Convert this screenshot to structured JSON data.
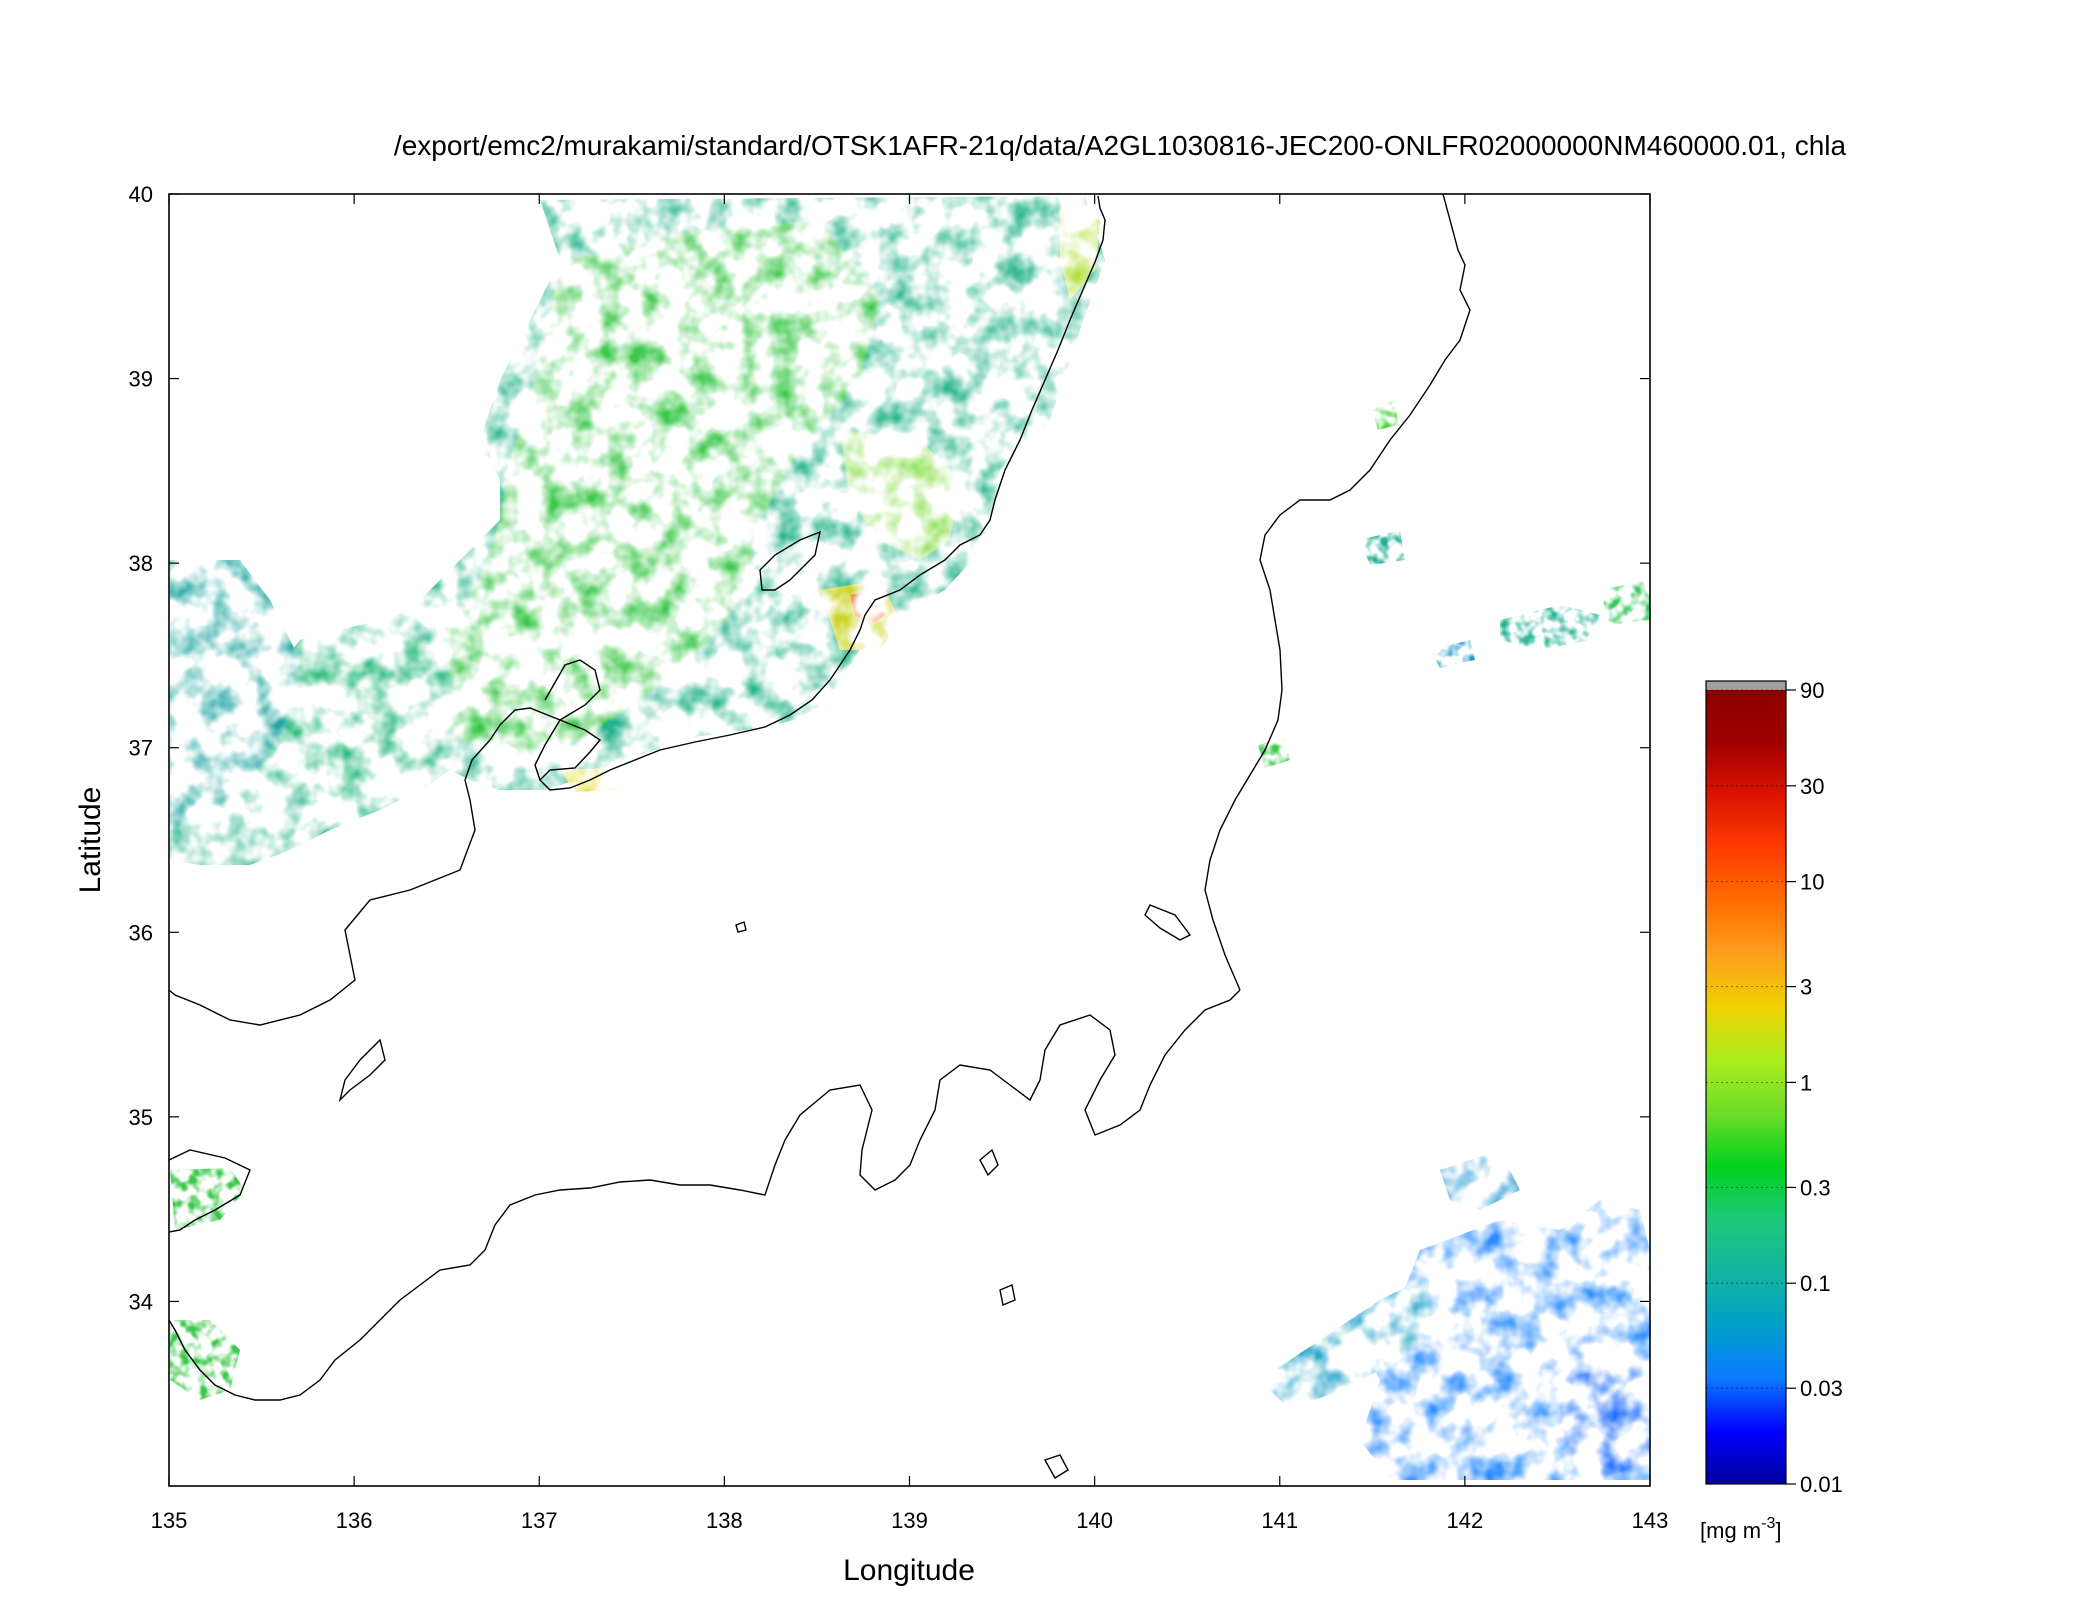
{
  "title": "/export/emc2/murakami/standard/OTSK1AFR-21q/data/A2GL1030816-JEC200-ONLFR02000000NM460000.01, chla",
  "map": {
    "xlabel": "Longitude",
    "ylabel": "Latitude",
    "lon_ticks": [
      "135",
      "136",
      "137",
      "138",
      "139",
      "140",
      "141",
      "142",
      "143"
    ],
    "lat_ticks": [
      "34",
      "35",
      "36",
      "37",
      "38",
      "39",
      "40"
    ],
    "lon_range": [
      135,
      143
    ],
    "lat_range": [
      33.0,
      40.0
    ]
  },
  "colorbar": {
    "ticks": [
      "90",
      "30",
      "10",
      "3",
      "1",
      "0.3",
      "0.1",
      "0.03",
      "0.01"
    ],
    "unit_main": "[mg m",
    "unit_sup": "-3",
    "unit_close": "]",
    "range": [
      0.01,
      90
    ],
    "scale": "log",
    "stops": [
      "#0000a0",
      "#0000ff",
      "#0a7bff",
      "#00a0c8",
      "#14b4a0",
      "#1ec878",
      "#00d21e",
      "#6edc28",
      "#aaec1e",
      "#eed200",
      "#ffa01e",
      "#ff6e00",
      "#ff3c00",
      "#dc1400",
      "#a00000",
      "#8c0000"
    ],
    "cap_color": "#a0a0a0"
  },
  "chart_data": {
    "type": "heatmap",
    "variable": "chla",
    "title": "/export/emc2/murakami/standard/OTSK1AFR-21q/data/A2GL1030816-JEC200-ONLFR02000000NM460000.01, chla",
    "xlabel": "Longitude",
    "ylabel": "Latitude",
    "xlim": [
      135,
      143
    ],
    "ylim": [
      33.0,
      40.0
    ],
    "color_scale": "log",
    "zlim": [
      0.01,
      90
    ],
    "colorbar_ticks": [
      90,
      30,
      10,
      3,
      1,
      0.3,
      0.1,
      0.03,
      0.01
    ],
    "unit": "[mg m-3]"
  }
}
